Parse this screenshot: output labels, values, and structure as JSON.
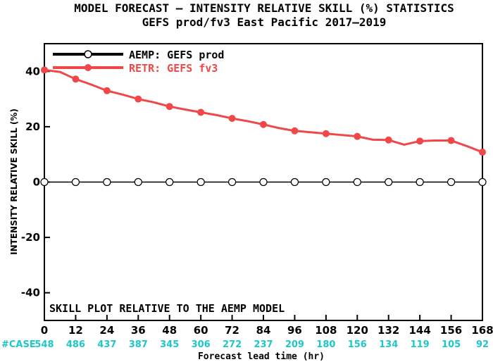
{
  "chart_data": {
    "type": "line",
    "title": "MODEL FORECAST – INTENSITY RELATIVE SKILL (%) STATISTICS",
    "subtitle": "GEFS prod/fv3 East Pacific 2017–2019",
    "xlabel": "Forecast lead time (hr)",
    "ylabel": "INTENSITY RELATIVE SKILL (%)",
    "xlim": [
      0,
      168
    ],
    "ylim": [
      -50,
      50
    ],
    "x_ticks": [
      0,
      12,
      24,
      36,
      48,
      60,
      72,
      84,
      96,
      108,
      120,
      132,
      144,
      156,
      168
    ],
    "y_ticks": [
      40,
      20,
      0,
      -20,
      -40
    ],
    "grid": false,
    "legend_position": "top-left",
    "annotation": "SKILL PLOT RELATIVE TO THE AEMP MODEL",
    "case_label": "#CASE",
    "case_counts": [
      "548",
      "486",
      "437",
      "387",
      "345",
      "306",
      "272",
      "237",
      "209",
      "180",
      "156",
      "134",
      "119",
      "105",
      "92"
    ],
    "series": [
      {
        "name": "AEMP: GEFS prod",
        "color": "#000000",
        "x": [
          0,
          6,
          12,
          18,
          24,
          30,
          36,
          42,
          48,
          54,
          60,
          66,
          72,
          78,
          84,
          90,
          96,
          102,
          108,
          114,
          120,
          126,
          132,
          138,
          144,
          150,
          156,
          162,
          168
        ],
        "y": [
          0,
          0,
          0,
          0,
          0,
          0,
          0,
          0,
          0,
          0,
          0,
          0,
          0,
          0,
          0,
          0,
          0,
          0,
          0,
          0,
          0,
          0,
          0,
          0,
          0,
          0,
          0,
          0,
          0
        ],
        "marker_x": [
          0,
          12,
          24,
          36,
          48,
          60,
          72,
          84,
          96,
          108,
          120,
          132,
          144,
          156,
          168
        ]
      },
      {
        "name": "RETR: GEFS fv3",
        "color": "#f04848",
        "x": [
          0,
          6,
          12,
          18,
          24,
          30,
          36,
          42,
          48,
          54,
          60,
          66,
          72,
          78,
          84,
          90,
          96,
          102,
          108,
          114,
          120,
          126,
          132,
          138,
          144,
          150,
          156,
          162,
          168
        ],
        "y": [
          40.5,
          39.8,
          37.2,
          35.2,
          33.0,
          31.6,
          30.0,
          28.8,
          27.3,
          26.2,
          25.2,
          24.2,
          23.0,
          22.0,
          20.8,
          19.5,
          18.5,
          18.0,
          17.5,
          17.0,
          16.5,
          15.3,
          15.2,
          13.5,
          14.8,
          15.0,
          15.0,
          13.0,
          10.8
        ],
        "marker_x": [
          0,
          12,
          24,
          36,
          48,
          60,
          72,
          84,
          96,
          108,
          120,
          132,
          144,
          156,
          168
        ]
      }
    ]
  },
  "colors": {
    "axis": "#000000",
    "case_text": "#1ec8c8",
    "baseline": "#000000",
    "retr": "#f04848"
  }
}
